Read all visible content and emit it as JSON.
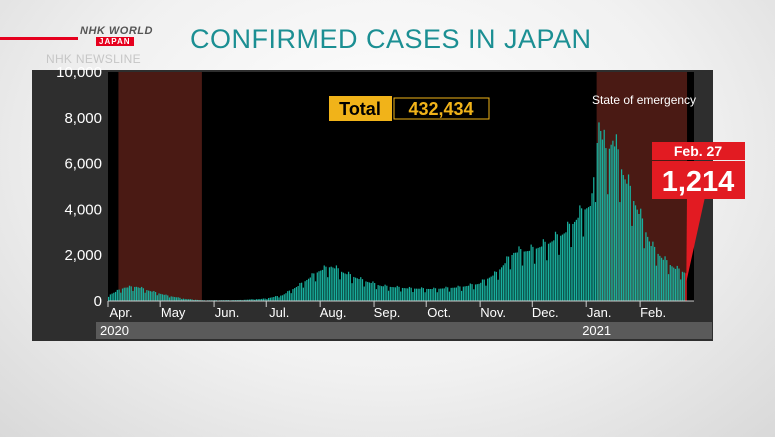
{
  "header": {
    "brand_line1": "NHK WORLD",
    "brand_line2": "JAPAN",
    "newsline": "NHK NEWSLINE",
    "title": "CONFIRMED CASES IN JAPAN"
  },
  "colors": {
    "bar": "#19b09e",
    "emergency_band": "#4a1a14",
    "total_box": "#f1b319",
    "callout": "#e21b22",
    "plot_bg": "#000000",
    "panel_bg": "#2e2e2e"
  },
  "chart_data": {
    "type": "bar",
    "title": "CONFIRMED CASES IN JAPAN",
    "xlabel": "",
    "ylabel": "",
    "ylim": [
      0,
      10000
    ],
    "yticks": [
      "0",
      "2,000",
      "4,000",
      "6,000",
      "8,000",
      "10,000"
    ],
    "ytick_values": [
      0,
      2000,
      4000,
      6000,
      8000,
      10000
    ],
    "x_start": "2020-04-01",
    "x_end": "2021-03-04",
    "month_labels": [
      "Apr.",
      "May",
      "Jun.",
      "Jul.",
      "Aug.",
      "Sep.",
      "Oct.",
      "Nov.",
      "Dec.",
      "Jan.",
      "Feb."
    ],
    "month_dates": [
      "2020-04-01",
      "2020-05-01",
      "2020-06-01",
      "2020-07-01",
      "2020-08-01",
      "2020-09-01",
      "2020-10-01",
      "2020-11-01",
      "2020-12-01",
      "2021-01-01",
      "2021-02-01"
    ],
    "years": [
      {
        "label": "2020",
        "date": "2020-04-01"
      },
      {
        "label": "2021",
        "date": "2021-01-01"
      }
    ],
    "emergency_periods": [
      {
        "start": "2020-04-07",
        "end": "2020-05-25"
      },
      {
        "start": "2021-01-07",
        "end": "2021-02-28"
      }
    ],
    "emergency_label": "State of emergency",
    "total_label": "Total",
    "total_value": "432,434",
    "callout_date": "Feb. 27",
    "callout_value": "1,214",
    "daily_profile": [
      {
        "date": "2020-04-01",
        "value": 250
      },
      {
        "date": "2020-04-10",
        "value": 580
      },
      {
        "date": "2020-04-17",
        "value": 620
      },
      {
        "date": "2020-04-25",
        "value": 430
      },
      {
        "date": "2020-05-05",
        "value": 230
      },
      {
        "date": "2020-05-15",
        "value": 90
      },
      {
        "date": "2020-05-25",
        "value": 30
      },
      {
        "date": "2020-06-15",
        "value": 40
      },
      {
        "date": "2020-06-30",
        "value": 100
      },
      {
        "date": "2020-07-10",
        "value": 250
      },
      {
        "date": "2020-07-20",
        "value": 700
      },
      {
        "date": "2020-07-31",
        "value": 1300
      },
      {
        "date": "2020-08-07",
        "value": 1500
      },
      {
        "date": "2020-08-15",
        "value": 1200
      },
      {
        "date": "2020-08-25",
        "value": 900
      },
      {
        "date": "2020-09-05",
        "value": 650
      },
      {
        "date": "2020-09-20",
        "value": 550
      },
      {
        "date": "2020-10-05",
        "value": 520
      },
      {
        "date": "2020-10-20",
        "value": 600
      },
      {
        "date": "2020-10-31",
        "value": 750
      },
      {
        "date": "2020-11-10",
        "value": 1200
      },
      {
        "date": "2020-11-20",
        "value": 2100
      },
      {
        "date": "2020-11-30",
        "value": 2200
      },
      {
        "date": "2020-12-10",
        "value": 2500
      },
      {
        "date": "2020-12-20",
        "value": 3000
      },
      {
        "date": "2020-12-31",
        "value": 4000
      },
      {
        "date": "2021-01-04",
        "value": 4200
      },
      {
        "date": "2021-01-08",
        "value": 7800
      },
      {
        "date": "2021-01-12",
        "value": 6300
      },
      {
        "date": "2021-01-16",
        "value": 7000
      },
      {
        "date": "2021-01-22",
        "value": 5500
      },
      {
        "date": "2021-01-31",
        "value": 3800
      },
      {
        "date": "2021-02-07",
        "value": 2400
      },
      {
        "date": "2021-02-14",
        "value": 1800
      },
      {
        "date": "2021-02-21",
        "value": 1400
      },
      {
        "date": "2021-02-27",
        "value": 1214
      }
    ]
  }
}
